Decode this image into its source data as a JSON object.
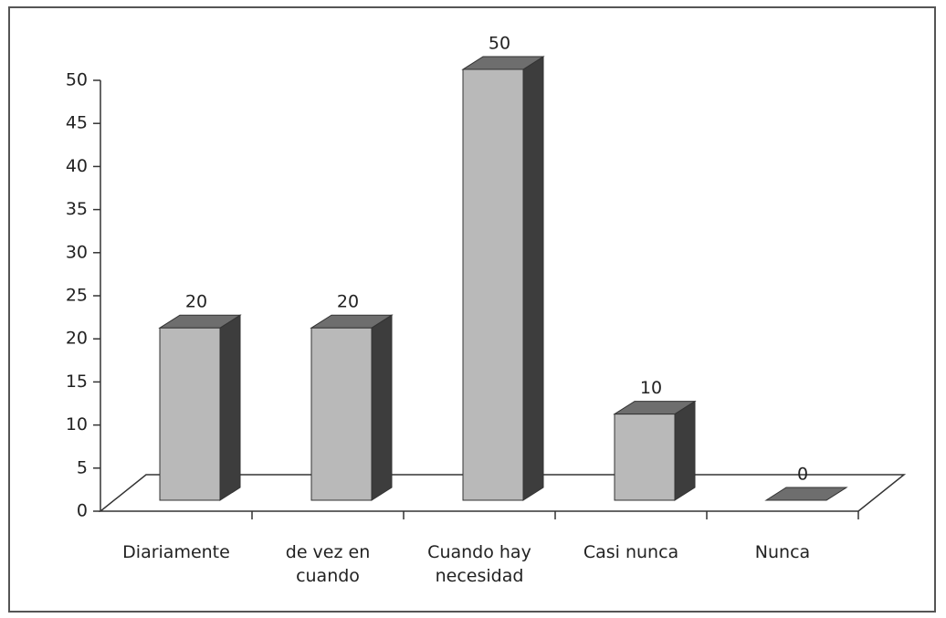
{
  "chart_data": {
    "type": "bar3d",
    "categories": [
      "Diariamente",
      "de vez en cuando",
      "Cuando hay necesidad",
      "Casi nunca",
      "Nunca"
    ],
    "values": [
      20,
      20,
      50,
      10,
      0
    ],
    "ylim": [
      0,
      50
    ],
    "yticks": [
      0,
      5,
      10,
      15,
      20,
      25,
      30,
      35,
      40,
      45,
      50
    ],
    "grid": false,
    "color": "#b9b9b9"
  }
}
